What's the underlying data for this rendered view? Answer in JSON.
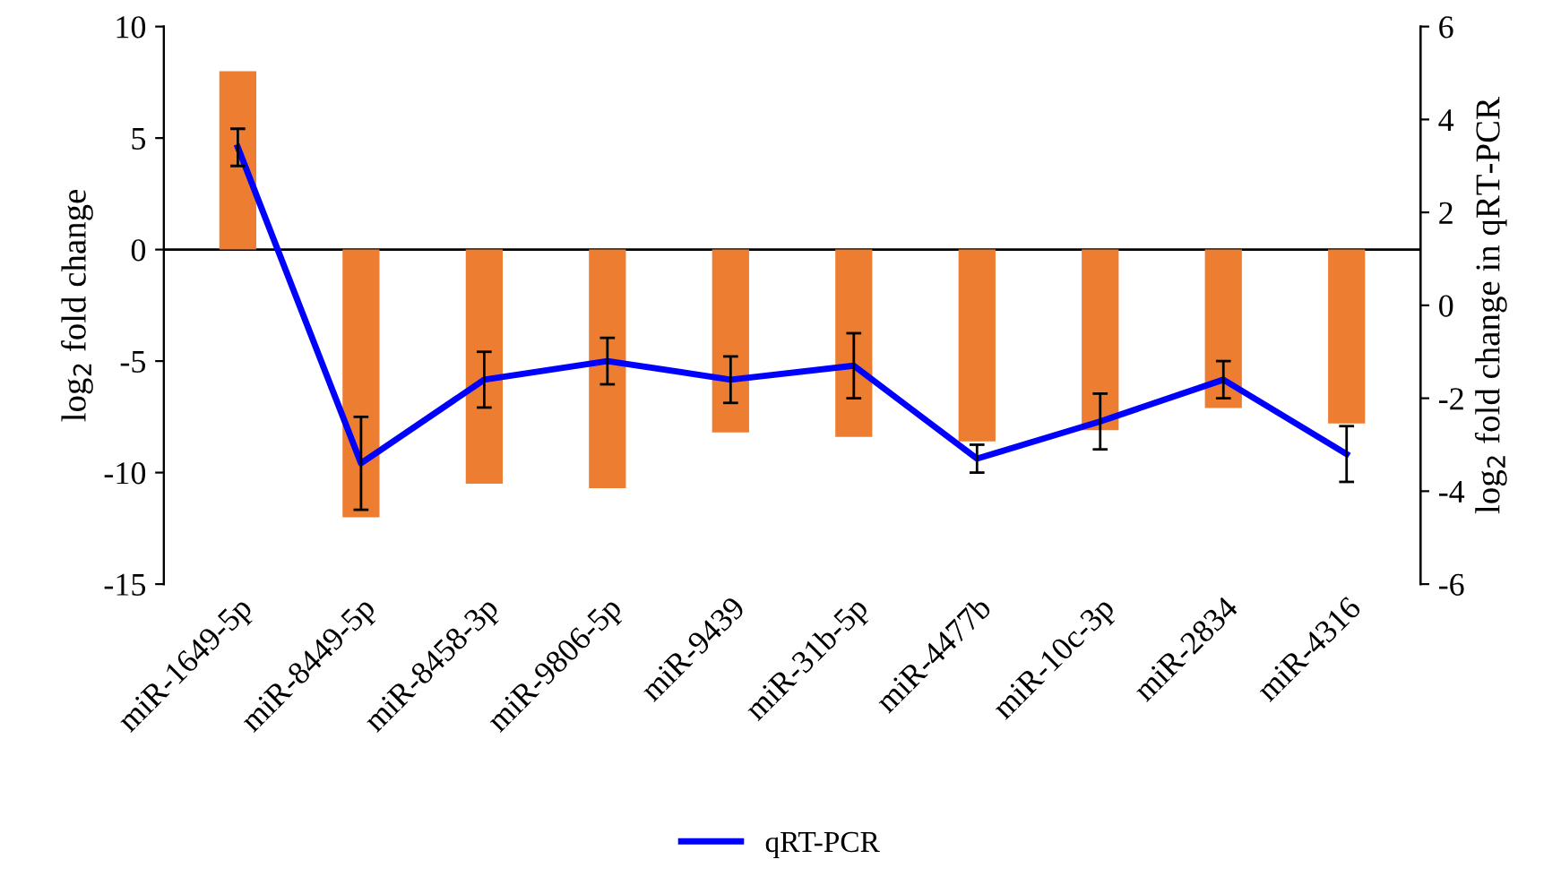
{
  "chart_data": {
    "type": "bar",
    "categories": [
      "miR-1649-5p",
      "miR-8449-5p",
      "miR-8458-3p",
      "miR-9806-5p",
      "miR-9439",
      "miR-31b-5p",
      "miR-4477b",
      "miR-10c-3p",
      "miR-2834",
      "miR-4316"
    ],
    "ylabel": "log$_{2}$ fold change",
    "y2label": "log$_{2}$ fold change in qRT-PCR",
    "series": [
      {
        "color": "#ed7d31",
        "values": [
          8,
          -12,
          -10.5,
          -10.7,
          -8.2,
          -8.4,
          -8.6,
          -8.1,
          -7.1,
          -7.8
        ]
      },
      {
        "type": "line",
        "name": "qRT-PCR",
        "axis": "y2",
        "color": "#0000ff",
        "values": [
          3.4,
          -3.4,
          -1.6,
          -1.2,
          -1.6,
          -1.3,
          -3.3,
          -2.5,
          -1.6,
          -3.2
        ],
        "errors": [
          0.4,
          1.0,
          0.6,
          0.5,
          0.5,
          0.7,
          0.3,
          0.6,
          0.4,
          0.6
        ]
      }
    ],
    "ylim": [
      -15,
      10
    ],
    "yticks": [
      -15,
      -10,
      -5,
      0,
      5,
      10
    ],
    "y2lim": [
      -6,
      6
    ],
    "y2ticks": [
      -6,
      -4,
      -2,
      0,
      2,
      4,
      6
    ],
    "ref_lines": [
      {
        "axis": "y",
        "value": 0,
        "color": "#000000"
      }
    ],
    "legend": "bottom",
    "marker": "none",
    "line_style": "solid"
  }
}
